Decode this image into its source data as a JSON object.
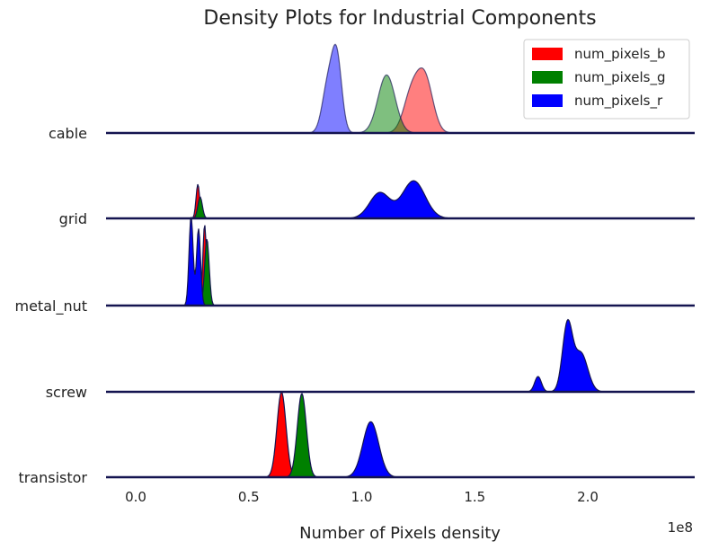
{
  "chart_data": {
    "type": "area",
    "title": "Density Plots for Industrial Components",
    "xlabel": "Number of Pixels density",
    "x_offset_label": "1e8",
    "xlim": [
      -0.15,
      2.47
    ],
    "xticks": [
      0.0,
      0.5,
      1.0,
      1.5,
      2.0
    ],
    "xtick_labels": [
      "0.0",
      "0.5",
      "1.0",
      "1.5",
      "2.0"
    ],
    "categories": [
      "cable",
      "grid",
      "metal_nut",
      "screw",
      "transistor"
    ],
    "legend": {
      "placement": "top-right",
      "entries": [
        "num_pixels_b",
        "num_pixels_g",
        "num_pixels_r"
      ]
    },
    "colors": {
      "num_pixels_b": "#ff0000",
      "num_pixels_g": "#008000",
      "num_pixels_r": "#0000ff",
      "edge": "#141450"
    },
    "alpha": {
      "cable": 0.5,
      "grid": 1.0,
      "metal_nut": 1.0,
      "screw": 1.0,
      "transistor": 1.0
    },
    "ridges": [
      {
        "category": "cable",
        "series": [
          {
            "name": "num_pixels_b",
            "components": [
              [
                1.22,
                0.035,
                0.45
              ],
              [
                1.28,
                0.035,
                0.62
              ]
            ]
          },
          {
            "name": "num_pixels_g",
            "components": [
              [
                1.11,
                0.038,
                0.68
              ]
            ]
          },
          {
            "name": "num_pixels_r",
            "components": [
              [
                0.85,
                0.025,
                0.55
              ],
              [
                0.89,
                0.022,
                0.85
              ]
            ]
          }
        ]
      },
      {
        "category": "grid",
        "series": [
          {
            "name": "num_pixels_b",
            "components": [
              [
                0.275,
                0.008,
                0.4
              ]
            ]
          },
          {
            "name": "num_pixels_g",
            "components": [
              [
                0.285,
                0.01,
                0.25
              ]
            ]
          },
          {
            "name": "num_pixels_r",
            "components": [
              [
                1.08,
                0.045,
                0.3
              ],
              [
                1.23,
                0.05,
                0.44
              ]
            ]
          }
        ]
      },
      {
        "category": "metal_nut",
        "series": [
          {
            "name": "num_pixels_b",
            "components": [
              [
                0.305,
                0.008,
                0.95
              ]
            ]
          },
          {
            "name": "num_pixels_g",
            "components": [
              [
                0.315,
                0.01,
                0.78
              ]
            ]
          },
          {
            "name": "num_pixels_r",
            "components": [
              [
                0.245,
                0.009,
                1.05
              ],
              [
                0.278,
                0.009,
                0.9
              ]
            ]
          }
        ]
      },
      {
        "category": "screw",
        "series": [
          {
            "name": "num_pixels_r",
            "components": [
              [
                1.78,
                0.015,
                0.18
              ],
              [
                1.91,
                0.022,
                0.78
              ],
              [
                1.97,
                0.03,
                0.45
              ]
            ]
          }
        ]
      },
      {
        "category": "transistor",
        "series": [
          {
            "name": "num_pixels_b",
            "components": [
              [
                0.645,
                0.02,
                1.0
              ]
            ]
          },
          {
            "name": "num_pixels_g",
            "components": [
              [
                0.735,
                0.02,
                0.98
              ]
            ]
          },
          {
            "name": "num_pixels_r",
            "components": [
              [
                1.04,
                0.035,
                0.65
              ]
            ]
          }
        ]
      }
    ]
  }
}
